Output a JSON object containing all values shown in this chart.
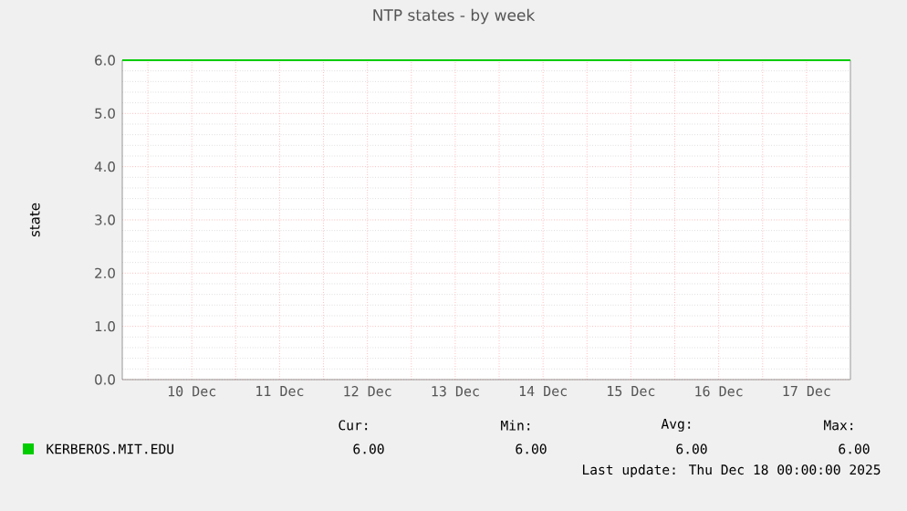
{
  "chart_data": {
    "type": "line",
    "title": "NTP states - by week",
    "ylabel": "state",
    "x": [
      "2025-12-09T17:00",
      "2025-12-18T00:00"
    ],
    "series": [
      {
        "name": "KERBEROS.MIT.EDU",
        "color": "#00cc00",
        "values": [
          6,
          6
        ]
      }
    ],
    "xlim": [
      "2025-12-09T17:00",
      "2025-12-18T00:00"
    ],
    "xticks": [
      {
        "value": "2025-12-10T00:00",
        "label": null
      },
      {
        "value": "2025-12-10T12:00",
        "label": "10 Dec"
      },
      {
        "value": "2025-12-11T00:00",
        "label": null
      },
      {
        "value": "2025-12-11T12:00",
        "label": "11 Dec"
      },
      {
        "value": "2025-12-12T00:00",
        "label": null
      },
      {
        "value": "2025-12-12T12:00",
        "label": "12 Dec"
      },
      {
        "value": "2025-12-13T00:00",
        "label": null
      },
      {
        "value": "2025-12-13T12:00",
        "label": "13 Dec"
      },
      {
        "value": "2025-12-14T00:00",
        "label": null
      },
      {
        "value": "2025-12-14T12:00",
        "label": "14 Dec"
      },
      {
        "value": "2025-12-15T00:00",
        "label": null
      },
      {
        "value": "2025-12-15T12:00",
        "label": "15 Dec"
      },
      {
        "value": "2025-12-16T00:00",
        "label": null
      },
      {
        "value": "2025-12-16T12:00",
        "label": "16 Dec"
      },
      {
        "value": "2025-12-17T00:00",
        "label": null
      },
      {
        "value": "2025-12-17T12:00",
        "label": "17 Dec"
      }
    ],
    "ylim": [
      0,
      6
    ],
    "yticks": [
      {
        "value": 0,
        "label": "0.0"
      },
      {
        "value": 1,
        "label": "1.0"
      },
      {
        "value": 2,
        "label": "2.0"
      },
      {
        "value": 3,
        "label": "3.0"
      },
      {
        "value": 4,
        "label": "4.0"
      },
      {
        "value": 5,
        "label": "5.0"
      },
      {
        "value": 6,
        "label": "6.0"
      }
    ],
    "grid": true,
    "legend": "bottom",
    "annotations": [
      "Cur:",
      "Min:",
      "Avg:",
      "Max:",
      "6.00",
      "6.00",
      "6.00",
      "6.00",
      "Last update:  Thu Dec 18 00:00:00 2025"
    ]
  }
}
